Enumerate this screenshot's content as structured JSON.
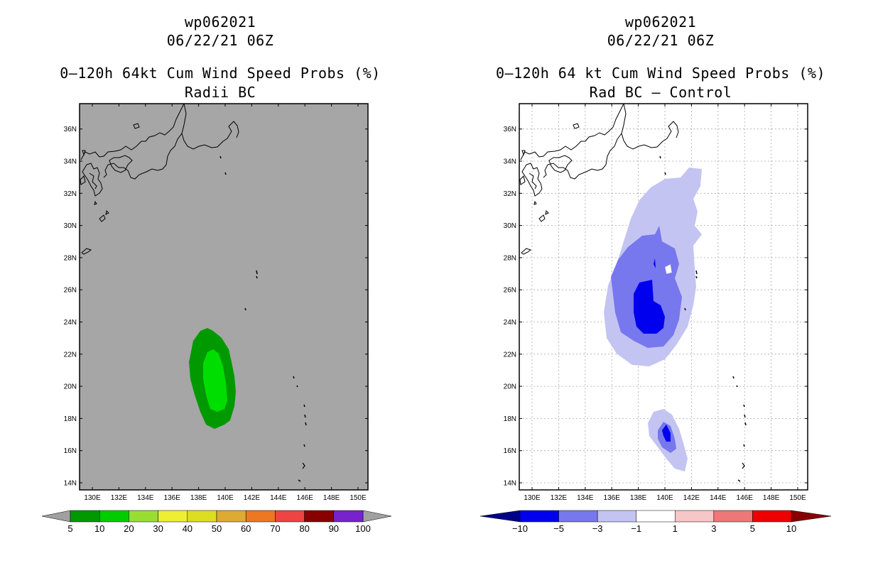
{
  "left_panel": {
    "storm_id": "wp062021",
    "datetime": "06/22/21 06Z",
    "title": "0–120h 64kt Cum Wind Speed Probs (%)",
    "subtitle": "Radii BC",
    "lat_labels": [
      "14N",
      "16N",
      "18N",
      "20N",
      "22N",
      "24N",
      "26N",
      "28N",
      "30N",
      "32N",
      "34N",
      "36N"
    ],
    "lon_labels": [
      "130E",
      "132E",
      "134E",
      "136E",
      "138E",
      "140E",
      "142E",
      "144E",
      "146E",
      "148E",
      "150E"
    ],
    "colorbar": {
      "labels": [
        "5",
        "10",
        "20",
        "30",
        "40",
        "50",
        "60",
        "70",
        "80",
        "90",
        "100"
      ],
      "colors": [
        "#009900",
        "#00cc00",
        "#99dd33",
        "#eeee33",
        "#dddd22",
        "#ddaa33",
        "#ee7722",
        "#ee4444",
        "#880000",
        "#7722cc"
      ],
      "under_color": "#a0a0a0",
      "over_color": "#a0a0a0"
    },
    "background_color": "#a6a6a6"
  },
  "right_panel": {
    "storm_id": "wp062021",
    "datetime": "06/22/21 06Z",
    "title": "0–120h 64 kt Cum Wind Speed Probs (%)",
    "subtitle": "Rad BC – Control",
    "lat_labels": [
      "14N",
      "16N",
      "18N",
      "20N",
      "22N",
      "24N",
      "26N",
      "28N",
      "30N",
      "32N",
      "34N",
      "36N"
    ],
    "lon_labels": [
      "130E",
      "132E",
      "134E",
      "136E",
      "138E",
      "140E",
      "142E",
      "144E",
      "146E",
      "148E",
      "150E"
    ],
    "colorbar": {
      "labels": [
        "−10",
        "−5",
        "−3",
        "−1",
        "1",
        "3",
        "5",
        "10"
      ],
      "colors": [
        "#0000ee",
        "#7777ee",
        "#c4c4f2",
        "#ffffff",
        "#f7c6c6",
        "#ee7777",
        "#ee0000"
      ],
      "under_color": "#000088",
      "over_color": "#880000"
    },
    "background_color": "#ffffff"
  }
}
